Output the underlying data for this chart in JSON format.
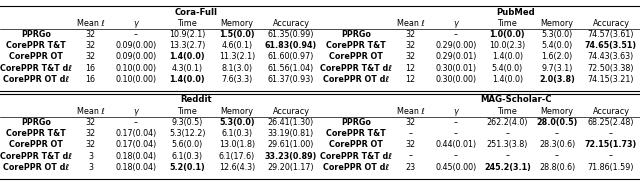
{
  "fontsize": 5.8,
  "sections": [
    {
      "title": "Cora-Full",
      "headers": [
        "Mean ℓ",
        "γ",
        "Time",
        "Memory",
        "Accuracy"
      ],
      "rows": [
        {
          "name": "PPRGo",
          "vals": [
            "32",
            "–",
            "10.9(2.1)",
            "1.5(0.0)",
            "61.35(0.99)"
          ],
          "bold": [
            false,
            false,
            false,
            true,
            false
          ]
        },
        {
          "name": "CorePPR T&T",
          "vals": [
            "32",
            "0.09(0.00)",
            "13.3(2.7)",
            "4.6(0.1)",
            "61.83(0.94)"
          ],
          "bold": [
            false,
            false,
            false,
            false,
            true
          ]
        },
        {
          "name": "CorePPR OT",
          "vals": [
            "32",
            "0.09(0.00)",
            "1.4(0.0)",
            "11.3(2.1)",
            "61.60(0.97)"
          ],
          "bold": [
            false,
            false,
            true,
            false,
            false
          ]
        },
        {
          "name": "CorePPR T&T dℓ",
          "vals": [
            "16",
            "0.10(0.00)",
            "4.3(0.1)",
            "8.1(3.0)",
            "61.56(1.04)"
          ],
          "bold": [
            false,
            false,
            false,
            false,
            false
          ]
        },
        {
          "name": "CorePPR OT dℓ",
          "vals": [
            "16",
            "0.10(0.00)",
            "1.4(0.0)",
            "7.6(3.3)",
            "61.37(0.93)"
          ],
          "bold": [
            false,
            false,
            true,
            false,
            false
          ]
        }
      ]
    },
    {
      "title": "PubMed",
      "headers": [
        "Mean ℓ",
        "γ",
        "Time",
        "Memory",
        "Accuracy"
      ],
      "rows": [
        {
          "name": "PPRGo",
          "vals": [
            "32",
            "–",
            "1.0(0.0)",
            "5.3(0.0)",
            "74.57(3.61)"
          ],
          "bold": [
            false,
            false,
            true,
            false,
            false
          ]
        },
        {
          "name": "CorePPR T&T",
          "vals": [
            "32",
            "0.29(0.00)",
            "10.0(2.3)",
            "5.4(0.0)",
            "74.65(3.51)"
          ],
          "bold": [
            false,
            false,
            false,
            false,
            true
          ]
        },
        {
          "name": "CorePPR OT",
          "vals": [
            "32",
            "0.29(0.01)",
            "1.4(0.0)",
            "1.6(2.0)",
            "74.43(3.63)"
          ],
          "bold": [
            false,
            false,
            false,
            false,
            false
          ]
        },
        {
          "name": "CorePPR T&T dℓ",
          "vals": [
            "12",
            "0.30(0.01)",
            "5.4(0.0)",
            "9.7(3.1)",
            "72.50(3.38)"
          ],
          "bold": [
            false,
            false,
            false,
            false,
            false
          ]
        },
        {
          "name": "CorePPR OT dℓ",
          "vals": [
            "12",
            "0.30(0.00)",
            "1.4(0.0)",
            "2.0(3.8)",
            "74.15(3.21)"
          ],
          "bold": [
            false,
            false,
            false,
            true,
            false
          ]
        }
      ]
    },
    {
      "title": "Reddit",
      "headers": [
        "Mean ℓ",
        "γ",
        "Time",
        "Memory",
        "Accuracy"
      ],
      "rows": [
        {
          "name": "PPRGo",
          "vals": [
            "32",
            "–",
            "9.3(0.5)",
            "5.3(0.0)",
            "26.41(1.30)"
          ],
          "bold": [
            false,
            false,
            false,
            true,
            false
          ]
        },
        {
          "name": "CorePPR T&T",
          "vals": [
            "32",
            "0.17(0.04)",
            "5.3(12.2)",
            "6.1(0.3)",
            "33.19(0.81)"
          ],
          "bold": [
            false,
            false,
            false,
            false,
            false
          ]
        },
        {
          "name": "CorePPR OT",
          "vals": [
            "32",
            "0.17(0.04)",
            "5.6(0.0)",
            "13.0(1.8)",
            "29.61(1.00)"
          ],
          "bold": [
            false,
            false,
            false,
            false,
            false
          ]
        },
        {
          "name": "CorePPR T&T dℓ",
          "vals": [
            "3",
            "0.18(0.04)",
            "6.1(0.3)",
            "6.1(17.6)",
            "33.23(0.89)"
          ],
          "bold": [
            false,
            false,
            false,
            false,
            true
          ]
        },
        {
          "name": "CorePPR OT dℓ",
          "vals": [
            "3",
            "0.18(0.04)",
            "5.2(0.1)",
            "12.6(4.3)",
            "29.20(1.17)"
          ],
          "bold": [
            false,
            false,
            true,
            false,
            false
          ]
        }
      ]
    },
    {
      "title": "MAG-Scholar-C",
      "headers": [
        "Mean ℓ",
        "γ",
        "Time",
        "Memory",
        "Accuracy"
      ],
      "rows": [
        {
          "name": "PPRGo",
          "vals": [
            "32",
            "–",
            "262.2(4.0)",
            "28.0(0.5)",
            "68.25(2.48)"
          ],
          "bold": [
            false,
            false,
            false,
            true,
            false
          ]
        },
        {
          "name": "CorePPR T&T",
          "vals": [
            "–",
            "–",
            "–",
            "–",
            "–"
          ],
          "bold": [
            false,
            false,
            false,
            false,
            false
          ]
        },
        {
          "name": "CorePPR OT",
          "vals": [
            "32",
            "0.44(0.01)",
            "251.3(3.8)",
            "28.3(0.6)",
            "72.15(1.73)"
          ],
          "bold": [
            false,
            false,
            false,
            false,
            true
          ]
        },
        {
          "name": "CorePPR T&T dℓ",
          "vals": [
            "–",
            "–",
            "–",
            "–",
            "–"
          ],
          "bold": [
            false,
            false,
            false,
            false,
            false
          ]
        },
        {
          "name": "CorePPR OT dℓ",
          "vals": [
            "23",
            "0.45(0.00)",
            "245.2(3.1)",
            "28.8(0.6)",
            "71.86(1.59)"
          ],
          "bold": [
            false,
            false,
            true,
            false,
            false
          ]
        }
      ]
    }
  ]
}
